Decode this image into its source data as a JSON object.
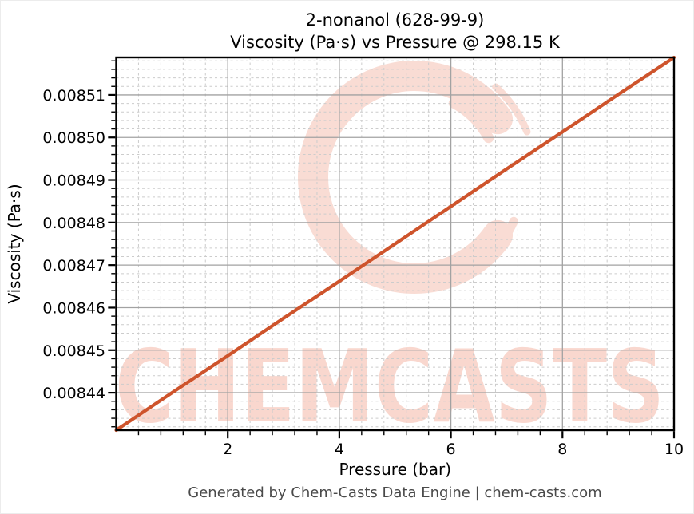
{
  "figure": {
    "title_line1": "2-nonanol (628-99-9)",
    "title_line2": "Viscosity (Pa·s) vs Pressure @ 298.15 K",
    "footer": "Generated by Chem-Casts Data Engine | chem-casts.com",
    "watermark_text": "CHEMCASTS"
  },
  "colors": {
    "line": "#ce542c",
    "watermark_text": "#f9d7ce",
    "watermark_ring": "#f9dcd4",
    "grid_major": "#a2a2a2",
    "grid_minor": "#cccccc",
    "axis": "#000000",
    "footer_text": "#4a4a4a"
  },
  "chart_data": {
    "type": "line",
    "title": "2-nonanol (628-99-9) — Viscosity (Pa·s) vs Pressure @ 298.15 K",
    "xlabel": "Pressure (bar)",
    "ylabel": "Viscosity (Pa·s)",
    "x": [
      0,
      1,
      2,
      3,
      4,
      5,
      6,
      7,
      8,
      9,
      10
    ],
    "values": [
      0.0084312,
      0.00844,
      0.0084487,
      0.0084575,
      0.0084662,
      0.008475,
      0.0084838,
      0.0084926,
      0.0085013,
      0.0085101,
      0.0085188
    ],
    "xlim": [
      0,
      10
    ],
    "ylim": [
      0.0084312,
      0.0085188
    ],
    "x_ticks": [
      2,
      4,
      6,
      8,
      10
    ],
    "y_ticks": [
      0.00844,
      0.00845,
      0.00846,
      0.00847,
      0.00848,
      0.00849,
      0.0085,
      0.00851
    ],
    "y_tick_decimals": 5,
    "x_minor_step": 0.4,
    "y_minor_step": 2e-06,
    "grid": "major-solid-minor-dashed",
    "legend": "none",
    "marker": "none"
  }
}
